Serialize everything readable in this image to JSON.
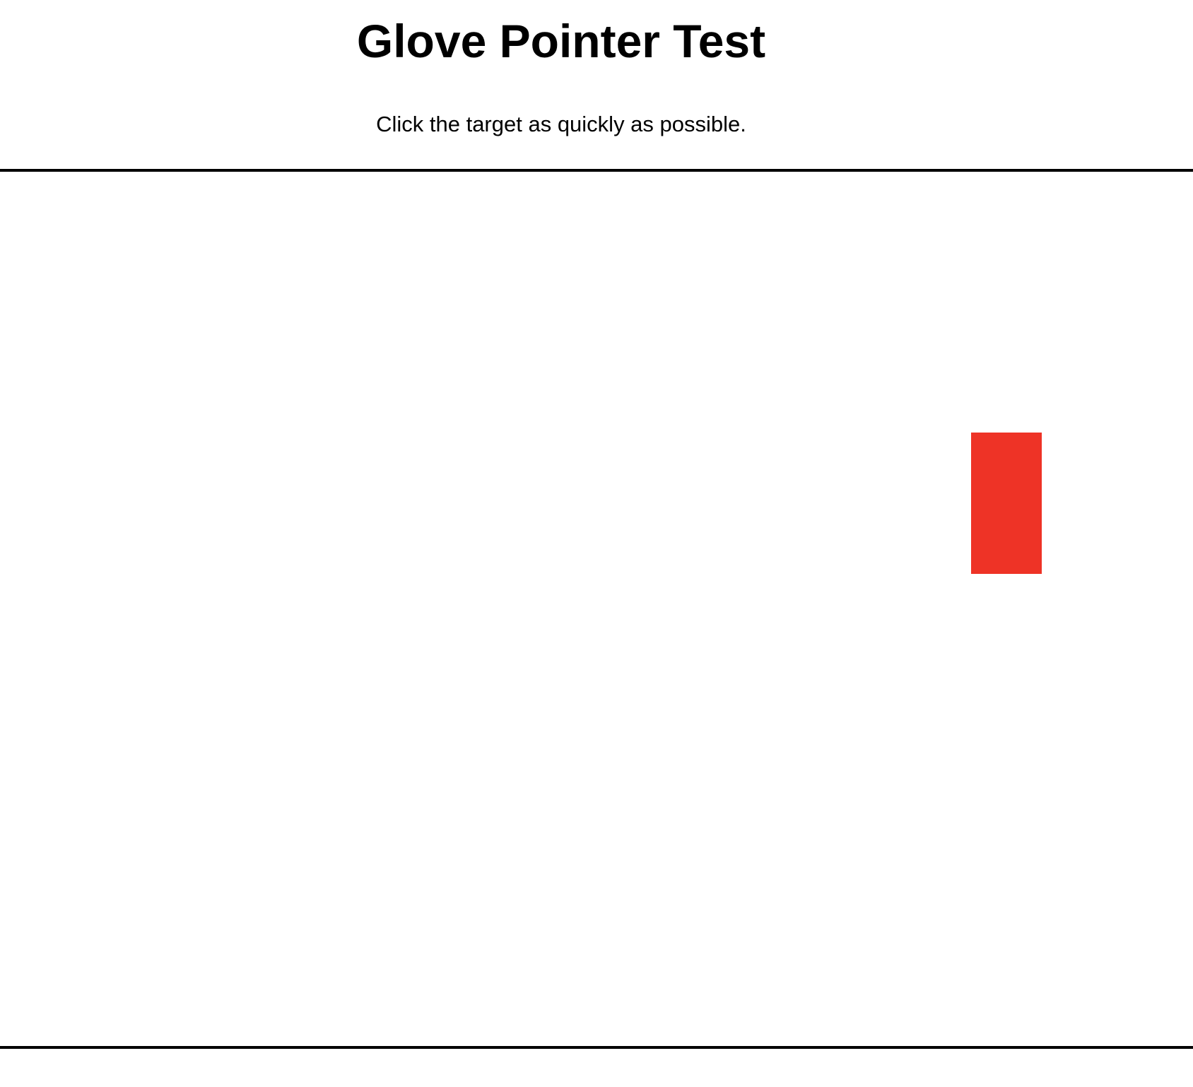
{
  "header": {
    "title": "Glove Pointer Test",
    "instructions": "Click the target as quickly as possible."
  },
  "target": {
    "color": "#EE3326"
  }
}
